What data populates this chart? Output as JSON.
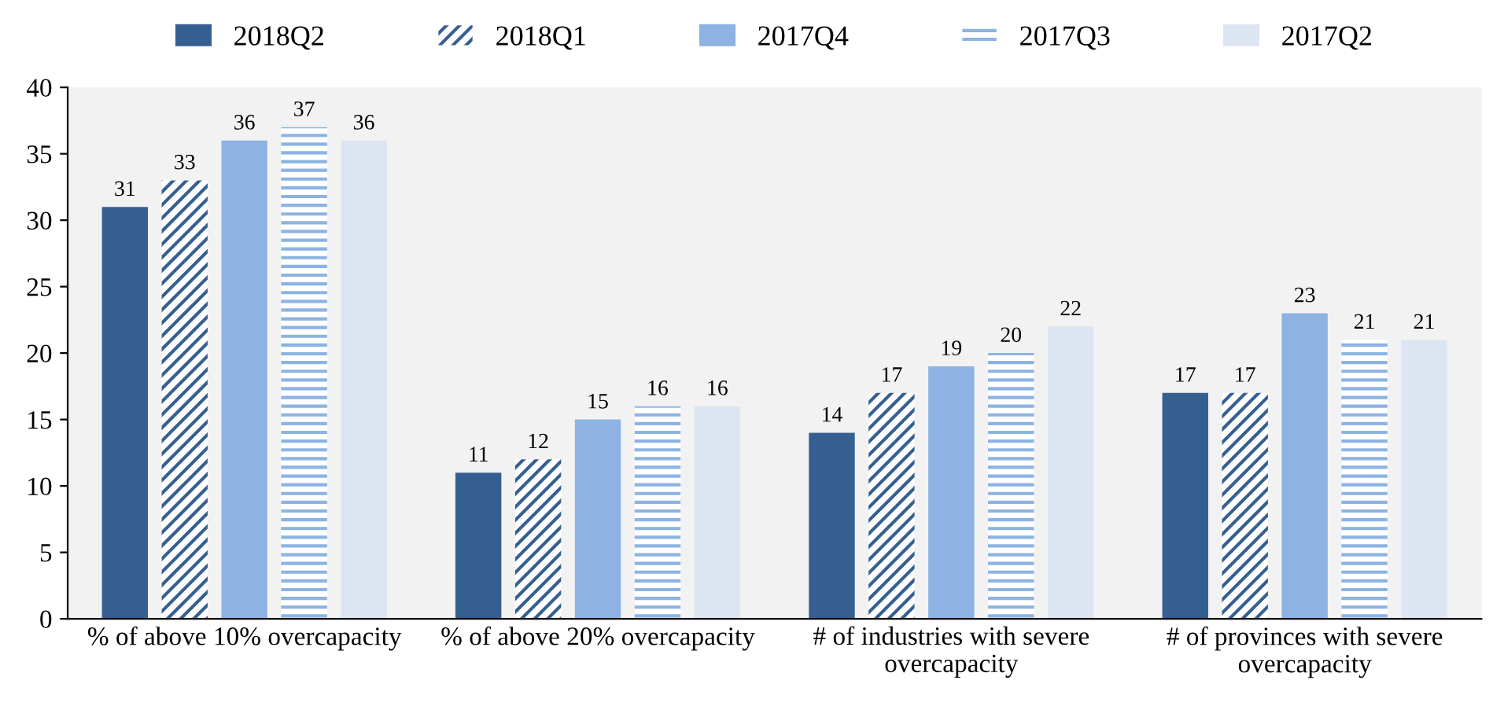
{
  "chart_data": {
    "type": "bar",
    "categories": [
      "% of above 10% overcapacity",
      "% of above 20% overcapacity",
      "# of industries with severe\novercapacity",
      "# of provinces with severe\novercapacity"
    ],
    "series": [
      {
        "name": "2018Q2",
        "color": "#365f91",
        "values": [
          31,
          11,
          14,
          17
        ]
      },
      {
        "name": "2018Q1",
        "color": "#365f91",
        "values": [
          33,
          12,
          17,
          17
        ]
      },
      {
        "name": "2017Q4",
        "color": "#8db3e2",
        "values": [
          36,
          15,
          19,
          23
        ]
      },
      {
        "name": "2017Q3",
        "color": "#8db3e2",
        "values": [
          37,
          16,
          20,
          21
        ]
      },
      {
        "name": "2017Q2",
        "color": "#dce6f2",
        "values": [
          36,
          16,
          22,
          21
        ]
      }
    ],
    "ylim": [
      0,
      40
    ],
    "yticks": [
      0,
      5,
      10,
      15,
      20,
      25,
      30,
      35,
      40
    ],
    "data_labels": true,
    "legend": "top",
    "grid": false
  }
}
